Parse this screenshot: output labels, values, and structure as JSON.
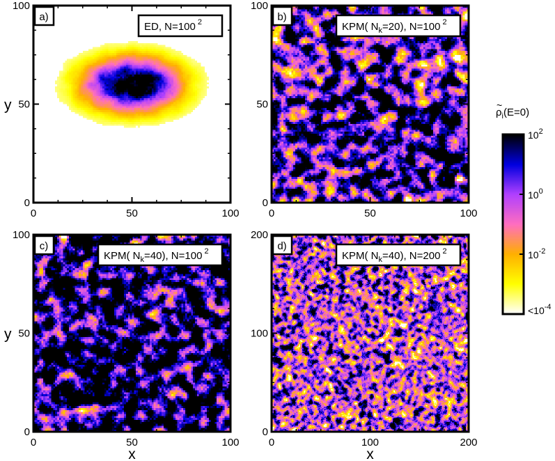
{
  "chart_data": [
    {
      "type": "heatmap",
      "panel_tag": "a)",
      "legend": {
        "method": "ED",
        "N_base": "100",
        "N_exp": "2"
      },
      "xlim": [
        0,
        100
      ],
      "ylim": [
        0,
        100
      ],
      "xticks": [
        "0",
        "50",
        "100"
      ],
      "yticks": [
        "0",
        "50",
        "100"
      ],
      "xlabel": "",
      "ylabel": "y",
      "grid_n": 100,
      "pattern": "localized",
      "center": [
        50,
        60
      ],
      "spread_x": 18,
      "spread_y": 10
    },
    {
      "type": "heatmap",
      "panel_tag": "b)",
      "legend": {
        "method": "KPM(",
        "Nk_label": "N",
        "Nk_sub": "k",
        "Nk_value": "=20)",
        "N_base": "N=100",
        "N_exp": "2"
      },
      "xlim": [
        0,
        100
      ],
      "ylim": [
        0,
        100
      ],
      "xticks": [
        "0",
        "50",
        "100"
      ],
      "yticks": [
        "0",
        "50",
        "100"
      ],
      "xlabel": "",
      "ylabel": "",
      "grid_n": 100,
      "pattern": "extended",
      "density": 0.78
    },
    {
      "type": "heatmap",
      "panel_tag": "c)",
      "legend": {
        "method": "KPM(",
        "Nk_label": "N",
        "Nk_sub": "k",
        "Nk_value": "=40)",
        "N_base": "N=100",
        "N_exp": "2"
      },
      "xlim": [
        0,
        100
      ],
      "ylim": [
        0,
        100
      ],
      "xticks": [
        "0",
        "50",
        "100"
      ],
      "yticks": [
        "0",
        "50",
        "100"
      ],
      "xlabel": "x",
      "ylabel": "y",
      "grid_n": 100,
      "pattern": "extended",
      "density": 0.92
    },
    {
      "type": "heatmap",
      "panel_tag": "d)",
      "legend": {
        "method": "KPM(",
        "Nk_label": "N",
        "Nk_sub": "k",
        "Nk_value": "=40)",
        "N_base": "N=200",
        "N_exp": "2"
      },
      "xlim": [
        0,
        200
      ],
      "ylim": [
        0,
        200
      ],
      "xticks": [
        "0",
        "100",
        "200"
      ],
      "yticks": [
        "0",
        "100",
        "200"
      ],
      "xlabel": "x",
      "ylabel": "",
      "grid_n": 200,
      "pattern": "extended",
      "density": 0.62
    }
  ],
  "colorbar": {
    "title_symbol": "ρ",
    "title_sub": "i",
    "title_arg": "(E=0)",
    "labels": [
      {
        "base": "10",
        "exp": "2"
      },
      {
        "base": "10",
        "exp": "0"
      },
      {
        "base": "10",
        "exp": "-2"
      },
      {
        "base": "<10",
        "exp": "-4"
      }
    ],
    "scale": "log",
    "range": [
      -4,
      2
    ],
    "colors": [
      "#ffffff",
      "#ffff00",
      "#ffb000",
      "#ff6ec0",
      "#b040ff",
      "#0000e0",
      "#000000"
    ]
  }
}
